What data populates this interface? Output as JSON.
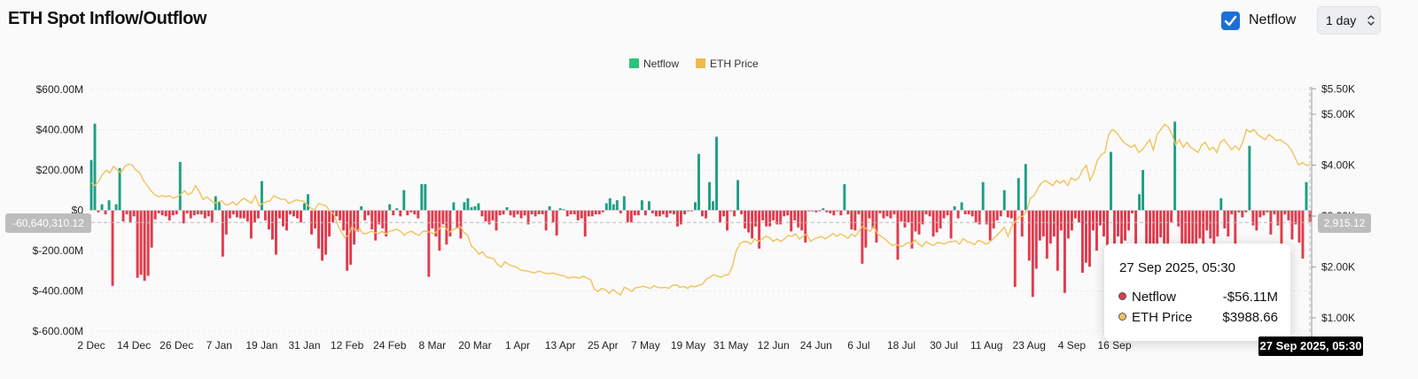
{
  "header": {
    "title": "ETH Spot Inflow/Outflow",
    "netflow_label": "Netflow",
    "interval_value": "1 day"
  },
  "colors": {
    "inflow": "#1e9e83",
    "outflow": "#e23a4c",
    "price": "#f2c25a",
    "legend_netflow": "#2ec27e",
    "legend_price": "#f0b94a"
  },
  "tooltip": {
    "date": "27 Sep 2025, 05:30",
    "rows": [
      {
        "label": "Netflow",
        "value": "-$56.11M",
        "color": "#e23a4c"
      },
      {
        "label": "ETH Price",
        "value": "$3988.66",
        "color": "#f2c25a"
      }
    ]
  },
  "crosshair": {
    "left_value": "-60,640,310.12",
    "right_value": "2,915.12",
    "date": "27 Sep 2025, 05:30"
  },
  "chart_data": {
    "type": "bar",
    "title": "ETH Spot Inflow/Outflow",
    "legend": [
      {
        "name": "Netflow",
        "color": "#2ec27e"
      },
      {
        "name": "ETH Price",
        "color": "#f0b94a"
      }
    ],
    "legend_position": "top-center",
    "grid": true,
    "x_ticks": [
      "2 Dec",
      "14 Dec",
      "26 Dec",
      "7 Jan",
      "19 Jan",
      "31 Jan",
      "12 Feb",
      "24 Feb",
      "8 Mar",
      "20 Mar",
      "1 Apr",
      "13 Apr",
      "25 Apr",
      "7 May",
      "19 May",
      "31 May",
      "12 Jun",
      "24 Jun",
      "6 Jul",
      "18 Jul",
      "30 Jul",
      "11 Aug",
      "23 Aug",
      "4 Sep",
      "16 Sep"
    ],
    "y_left": {
      "label": "Netflow",
      "range": [
        -600000000,
        600000000
      ],
      "ticks": [
        600000000,
        400000000,
        200000000,
        0,
        -200000000,
        -400000000,
        -600000000
      ],
      "tick_labels": [
        "$600.00M",
        "$400.00M",
        "$200.00M",
        "$0",
        "$-200.00M",
        "$-400.00M",
        "$-600.00M"
      ]
    },
    "y_right": {
      "label": "ETH Price",
      "range": [
        500,
        5500
      ],
      "ticks": [
        5500,
        5000,
        4000,
        3000,
        2000,
        1000
      ],
      "tick_labels": [
        "$5.50K",
        "$5.00K",
        "$4.00K",
        "$3.00K",
        "$2.00K",
        "$1.00K"
      ]
    },
    "start_date": "2024-12-02",
    "netflow_millions": [
      250,
      430,
      -10,
      30,
      -20,
      50,
      -375,
      30,
      210,
      -55,
      -20,
      -60,
      -30,
      -335,
      -320,
      -350,
      -325,
      -185,
      -45,
      -15,
      -25,
      -30,
      -50,
      -25,
      -20,
      240,
      -65,
      -15,
      -40,
      -25,
      -20,
      -20,
      -40,
      -30,
      -60,
      70,
      40,
      -230,
      -120,
      -40,
      -20,
      -35,
      -40,
      -40,
      -55,
      -140,
      -60,
      -40,
      145,
      -50,
      -95,
      -145,
      -220,
      -40,
      -80,
      -100,
      -20,
      -30,
      -40,
      -60,
      35,
      80,
      -120,
      -90,
      -190,
      -250,
      -220,
      -130,
      -60,
      -30,
      -50,
      -100,
      -300,
      -270,
      -170,
      -105,
      20,
      -50,
      -25,
      -95,
      -150,
      -70,
      -90,
      -130,
      30,
      -25,
      10,
      -30,
      100,
      -25,
      -10,
      -20,
      -40,
      130,
      130,
      -330,
      -90,
      -130,
      -200,
      -70,
      -170,
      -130,
      40,
      -90,
      -140,
      40,
      60,
      15,
      20,
      35,
      -30,
      -55,
      -70,
      -50,
      -100,
      -25,
      -20,
      15,
      -25,
      -35,
      -20,
      -40,
      -25,
      -70,
      -20,
      -30,
      -20,
      -20,
      -100,
      20,
      -60,
      -125,
      10,
      5,
      -30,
      -20,
      -20,
      -50,
      -40,
      -130,
      -30,
      -30,
      -20,
      -20,
      -10,
      35,
      60,
      30,
      50,
      -15,
      70,
      -60,
      -60,
      -25,
      -25,
      50,
      -25,
      45,
      -15,
      -30,
      -30,
      -20,
      -35,
      -15,
      -20,
      -80,
      -70,
      -20,
      -5,
      -5,
      40,
      280,
      -30,
      -40,
      140,
      45,
      365,
      -60,
      -30,
      -100,
      -5,
      -30,
      150,
      -20,
      -90,
      -110,
      -140,
      -80,
      -190,
      -50,
      -80,
      -80,
      -50,
      -70,
      -70,
      -30,
      -25,
      -105,
      -50,
      -85,
      -100,
      -160,
      -5,
      -5,
      -10,
      -5,
      10,
      -10,
      -15,
      -25,
      -5,
      -25,
      130,
      -20,
      -95,
      -100,
      -20,
      -265,
      -185,
      -40,
      -90,
      -160,
      -15,
      -40,
      -30,
      -40,
      -20,
      -245,
      -55,
      -85,
      -60,
      -190,
      -105,
      -120,
      -70,
      -20,
      -30,
      -130,
      -110,
      -90,
      -40,
      -25,
      -140,
      20,
      -40,
      40,
      -20,
      -20,
      -30,
      -60,
      -70,
      140,
      -70,
      -150,
      -90,
      -50,
      -30,
      100,
      -35,
      -40,
      -380,
      160,
      -130,
      230,
      -250,
      -430,
      -290,
      -150,
      -130,
      -240,
      -165,
      -130,
      -300,
      -100,
      -410,
      -140,
      -100,
      -40,
      -60,
      -310,
      -260,
      -280,
      -100,
      -200,
      -75,
      -130,
      -230,
      290,
      -270,
      -130,
      -210,
      -150,
      -100,
      -15,
      -250,
      80,
      200,
      -165,
      -180,
      -220,
      -180,
      -135,
      -195,
      -215,
      -60,
      440,
      -80,
      -230,
      -260,
      -235,
      -175,
      -260,
      -140,
      -220,
      -100,
      -140,
      -190,
      -130,
      60,
      -90,
      -130,
      -20,
      -175,
      -10,
      -35,
      -10,
      320,
      -75,
      -100,
      -35,
      -25,
      -10,
      -120,
      -20,
      -75,
      -200,
      -20,
      -50,
      -145,
      -70,
      -160,
      -240,
      140,
      -56.11
    ],
    "price_usd": [
      3650,
      3600,
      3680,
      3820,
      3900,
      3850,
      3980,
      3900,
      3850,
      3980,
      4020,
      4000,
      3900,
      3850,
      3700,
      3600,
      3500,
      3420,
      3380,
      3400,
      3380,
      3400,
      3350,
      3380,
      3420,
      3500,
      3420,
      3460,
      3600,
      3480,
      3320,
      3380,
      3310,
      3250,
      3280,
      3300,
      3220,
      3230,
      3280,
      3210,
      3300,
      3350,
      3300,
      3250,
      3400,
      3200,
      3250,
      3280,
      3300,
      3400,
      3360,
      3330,
      3330,
      3250,
      3280,
      3320,
      3300,
      3290,
      3220,
      3150,
      3120,
      3250,
      3220,
      3200,
      3100,
      3050,
      2850,
      2700,
      2580,
      2620,
      2800,
      2700,
      2750,
      2650,
      2660,
      2700,
      2680,
      2650,
      2700,
      2650,
      2700,
      2720,
      2740,
      2700,
      2620,
      2680,
      2700,
      2650,
      2620,
      2700,
      2700,
      2680,
      2650,
      2720,
      2800,
      2780,
      2680,
      2730,
      2760,
      2800,
      2680,
      2620,
      2410,
      2350,
      2250,
      2300,
      2200,
      2180,
      2160,
      2050,
      2000,
      2100,
      2050,
      2020,
      2000,
      1950,
      1930,
      1920,
      1900,
      1880,
      1920,
      1900,
      1870,
      1870,
      1880,
      1850,
      1840,
      1820,
      1780,
      1800,
      1800,
      1780,
      1820,
      1780,
      1750,
      1560,
      1520,
      1580,
      1550,
      1480,
      1560,
      1500,
      1450,
      1600,
      1570,
      1520,
      1590,
      1600,
      1620,
      1600,
      1580,
      1630,
      1600,
      1590,
      1600,
      1580,
      1640,
      1650,
      1600,
      1620,
      1580,
      1630,
      1610,
      1640,
      1660,
      1760,
      1800,
      1850,
      1820,
      1800,
      1840,
      1850,
      2000,
      2300,
      2450,
      2500,
      2500,
      2450,
      2550,
      2500,
      2550,
      2600,
      2580,
      2500,
      2550,
      2500,
      2550,
      2620,
      2600,
      2650,
      2550,
      2600,
      2650,
      2500,
      2550,
      2580,
      2600,
      2550,
      2600,
      2660,
      2600,
      2650,
      2620,
      2560,
      2650,
      2600,
      2700,
      2800,
      2750,
      2700,
      2800,
      2650,
      2600,
      2550,
      2480,
      2420,
      2450,
      2400,
      2420,
      2480,
      2450,
      2530,
      2450,
      2400,
      2500,
      2450,
      2420,
      2480,
      2470,
      2450,
      2490,
      2500,
      2510,
      2450,
      2560,
      2500,
      2480,
      2440,
      2520,
      2500,
      2450,
      2480,
      2550,
      2620,
      2700,
      2780,
      2600,
      2800,
      2900,
      2980,
      3000,
      3100,
      3350,
      3400,
      3550,
      3650,
      3700,
      3650,
      3600,
      3700,
      3650,
      3700,
      3600,
      3750,
      3700,
      3750,
      3900,
      4000,
      3700,
      3850,
      4100,
      4200,
      4250,
      4600,
      4700,
      4650,
      4550,
      4450,
      4400,
      4350,
      4400,
      4250,
      4300,
      4400,
      4500,
      4300,
      4600,
      4700,
      4800,
      4750,
      4600,
      4400,
      4500,
      4350,
      4450,
      4350,
      4300,
      4250,
      4400,
      4450,
      4300,
      4350,
      4250,
      4450,
      4500,
      4400,
      4300,
      4380,
      4300,
      4450,
      4700,
      4650,
      4700,
      4600,
      4550,
      4500,
      4600,
      4550,
      4480,
      4500,
      4450,
      4400,
      4300,
      4150,
      4000,
      4050,
      4000,
      3988.66
    ]
  }
}
